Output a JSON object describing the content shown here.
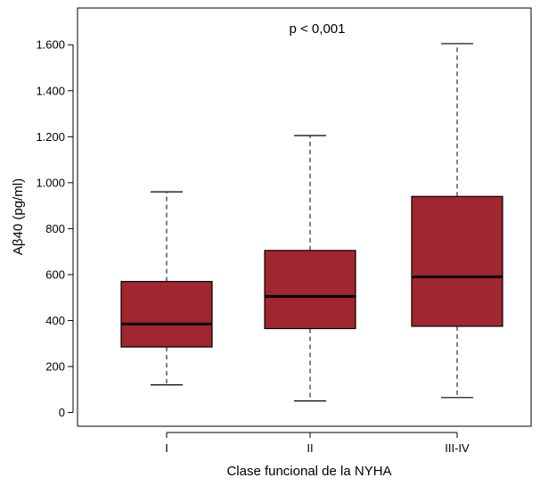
{
  "chart_data": {
    "type": "boxplot",
    "title": "",
    "annotation": "p < 0,001",
    "xlabel": "Clase funcional de la NYHA",
    "ylabel": "Aβ40 (pg/ml)",
    "ylim": [
      -60,
      1760
    ],
    "yticks": [
      0,
      200,
      400,
      600,
      800,
      1000,
      1200,
      1400,
      1600
    ],
    "ytick_labels": [
      "0",
      "200",
      "400",
      "600",
      "800",
      "1.000",
      "1.200",
      "1.400",
      "1.600"
    ],
    "categories": [
      "I",
      "II",
      "III-IV"
    ],
    "boxes": [
      {
        "category": "I",
        "min": 120,
        "q1": 285,
        "median": 385,
        "q3": 570,
        "max": 960
      },
      {
        "category": "II",
        "min": 50,
        "q1": 365,
        "median": 505,
        "q3": 705,
        "max": 1205
      },
      {
        "category": "III-IV",
        "min": 65,
        "q1": 375,
        "median": 590,
        "q3": 940,
        "max": 1605
      }
    ],
    "box_color": "#a2262f",
    "grid": false,
    "legend": "none"
  }
}
